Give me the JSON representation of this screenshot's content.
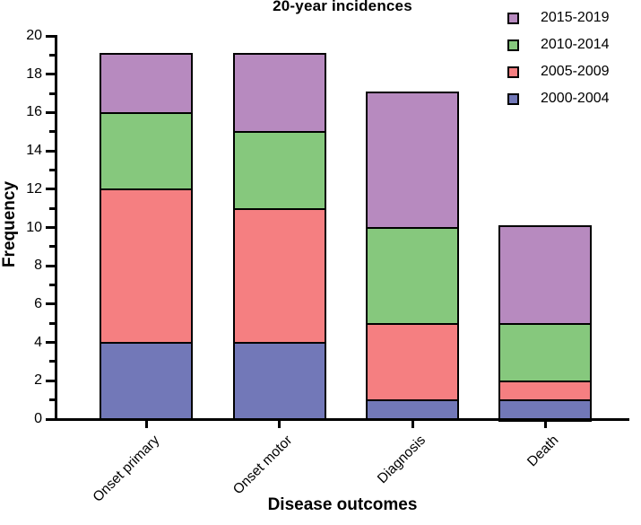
{
  "chart_data": {
    "type": "bar",
    "stacked": true,
    "title": "20-year incidences",
    "xlabel": "Disease outcomes",
    "ylabel": "Frequency",
    "categories": [
      "Onset primary",
      "Onset motor",
      "Diagnosis",
      "Death"
    ],
    "series": [
      {
        "name": "2000-2004",
        "color": "#7278b8",
        "values": [
          4,
          4,
          1,
          1
        ]
      },
      {
        "name": "2005-2009",
        "color": "#f57f81",
        "values": [
          8,
          7,
          4,
          1
        ]
      },
      {
        "name": "2010-2014",
        "color": "#86c87d",
        "values": [
          4,
          4,
          5,
          3
        ]
      },
      {
        "name": "2015-2019",
        "color": "#b78abf",
        "values": [
          3,
          4,
          7,
          5
        ]
      }
    ],
    "bar_totals": [
      19,
      19,
      17,
      10
    ],
    "legend_order": [
      "2015-2019",
      "2010-2014",
      "2005-2009",
      "2000-2004"
    ],
    "legend_position": "top-right",
    "ylim": [
      0,
      20
    ],
    "ytick_step": 2,
    "yminor_step": 1,
    "grid": false,
    "axis_color": "#000000",
    "bar_border_color": "#000000"
  }
}
